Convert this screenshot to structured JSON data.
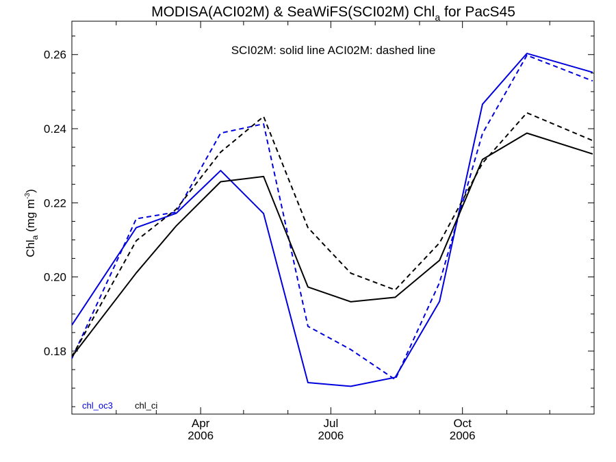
{
  "chart_data": {
    "type": "line",
    "title_parts": {
      "prefix": "MODISA(ACI02M) & SeaWiFS(SCI02M)  Chl",
      "subscript": "a",
      "suffix": " for PacS45"
    },
    "ylabel_parts": {
      "main": "Chl",
      "subscript": "a",
      "unit_open": " (mg m",
      "superscript": "-3",
      "unit_close": ")"
    },
    "annotation": "SCI02M: solid line   ACI02M: dashed line",
    "x_ticks": [
      {
        "label": "Apr",
        "year": "2006",
        "month": 4
      },
      {
        "label": "Jul",
        "year": "2006",
        "month": 7
      },
      {
        "label": "Oct",
        "year": "2006",
        "month": 10
      }
    ],
    "x_range": {
      "start": "2006-01-01",
      "end": "2007-01-01"
    },
    "ylim": [
      0.163,
      0.269
    ],
    "y_ticks": [
      "0.18",
      "0.20",
      "0.22",
      "0.24",
      "0.26"
    ],
    "legend": [
      {
        "name": "chl_oc3",
        "color": "#0000dd"
      },
      {
        "name": "chl_ci",
        "color": "#000000"
      }
    ],
    "series": [
      {
        "name": "chl_oc3",
        "source": "SCI02M",
        "style": "solid",
        "color": "#0000dd",
        "x": [
          "2006-01-01",
          "2006-02-15",
          "2006-03-15",
          "2006-04-15",
          "2006-05-15",
          "2006-06-15",
          "2006-07-15",
          "2006-08-15",
          "2006-09-15",
          "2006-10-15",
          "2006-11-15",
          "2006-12-31"
        ],
        "y": [
          0.187,
          0.2133,
          0.2172,
          0.2287,
          0.2171,
          0.1715,
          0.1705,
          0.1729,
          0.1934,
          0.2466,
          0.2603,
          0.2552
        ]
      },
      {
        "name": "chl_oc3",
        "source": "ACI02M",
        "style": "dashed",
        "color": "#0000dd",
        "x": [
          "2006-01-01",
          "2006-02-15",
          "2006-03-15",
          "2006-04-15",
          "2006-05-15",
          "2006-06-15",
          "2006-07-15",
          "2006-08-15",
          "2006-09-15",
          "2006-10-15",
          "2006-11-15",
          "2006-12-31"
        ],
        "y": [
          0.178,
          0.2157,
          0.2175,
          0.2388,
          0.2413,
          0.1867,
          0.1804,
          0.1723,
          0.1985,
          0.2387,
          0.2598,
          0.2529
        ]
      },
      {
        "name": "chl_ci",
        "source": "SCI02M",
        "style": "solid",
        "color": "#000000",
        "x": [
          "2006-01-01",
          "2006-02-15",
          "2006-03-15",
          "2006-04-15",
          "2006-05-15",
          "2006-06-15",
          "2006-07-15",
          "2006-08-15",
          "2006-09-15",
          "2006-10-15",
          "2006-11-15",
          "2006-12-31"
        ],
        "y": [
          0.1785,
          0.2011,
          0.2138,
          0.2257,
          0.2271,
          0.1973,
          0.1933,
          0.1945,
          0.2045,
          0.2317,
          0.2388,
          0.2332
        ]
      },
      {
        "name": "chl_ci",
        "source": "ACI02M",
        "style": "dashed",
        "color": "#000000",
        "x": [
          "2006-01-01",
          "2006-02-15",
          "2006-03-15",
          "2006-04-15",
          "2006-05-15",
          "2006-06-15",
          "2006-07-15",
          "2006-08-15",
          "2006-09-15",
          "2006-10-15",
          "2006-11-15",
          "2006-12-31"
        ],
        "y": [
          0.1785,
          0.2098,
          0.2183,
          0.2337,
          0.2433,
          0.2133,
          0.201,
          0.1965,
          0.2092,
          0.2307,
          0.2443,
          0.2368
        ]
      }
    ],
    "grid": false
  }
}
